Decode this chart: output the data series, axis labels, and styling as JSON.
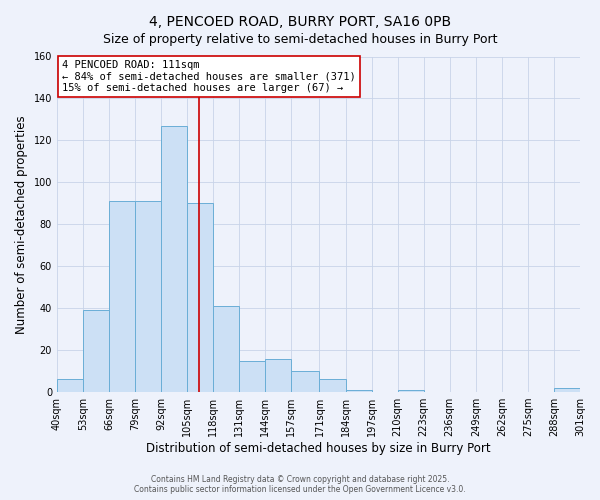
{
  "title": "4, PENCOED ROAD, BURRY PORT, SA16 0PB",
  "subtitle": "Size of property relative to semi-detached houses in Burry Port",
  "xlabel": "Distribution of semi-detached houses by size in Burry Port",
  "ylabel": "Number of semi-detached properties",
  "bar_edges": [
    40,
    53,
    66,
    79,
    92,
    105,
    118,
    131,
    144,
    157,
    171,
    184,
    197,
    210,
    223,
    236,
    249,
    262,
    275,
    288,
    301
  ],
  "bar_heights": [
    6,
    39,
    91,
    91,
    127,
    90,
    41,
    15,
    16,
    10,
    6,
    1,
    0,
    1,
    0,
    0,
    0,
    0,
    0,
    2
  ],
  "bar_color": "#cce0f5",
  "bar_edge_color": "#6aaed6",
  "property_line_x": 111,
  "property_line_color": "#cc0000",
  "annotation_title": "4 PENCOED ROAD: 111sqm",
  "annotation_line1": "← 84% of semi-detached houses are smaller (371)",
  "annotation_line2": "15% of semi-detached houses are larger (67) →",
  "annotation_box_facecolor": "#ffffff",
  "annotation_box_edgecolor": "#cc0000",
  "ylim": [
    0,
    160
  ],
  "yticks": [
    0,
    20,
    40,
    60,
    80,
    100,
    120,
    140,
    160
  ],
  "tick_labels": [
    "40sqm",
    "53sqm",
    "66sqm",
    "79sqm",
    "92sqm",
    "105sqm",
    "118sqm",
    "131sqm",
    "144sqm",
    "157sqm",
    "171sqm",
    "184sqm",
    "197sqm",
    "210sqm",
    "223sqm",
    "236sqm",
    "249sqm",
    "262sqm",
    "275sqm",
    "288sqm",
    "301sqm"
  ],
  "footer1": "Contains HM Land Registry data © Crown copyright and database right 2025.",
  "footer2": "Contains public sector information licensed under the Open Government Licence v3.0.",
  "plot_bg_color": "#eef2fb",
  "fig_bg_color": "#eef2fb",
  "grid_color": "#c8d4e8",
  "title_fontsize": 10,
  "subtitle_fontsize": 9,
  "axis_label_fontsize": 8.5,
  "tick_fontsize": 7,
  "annotation_fontsize": 7.5,
  "footer_fontsize": 5.5
}
